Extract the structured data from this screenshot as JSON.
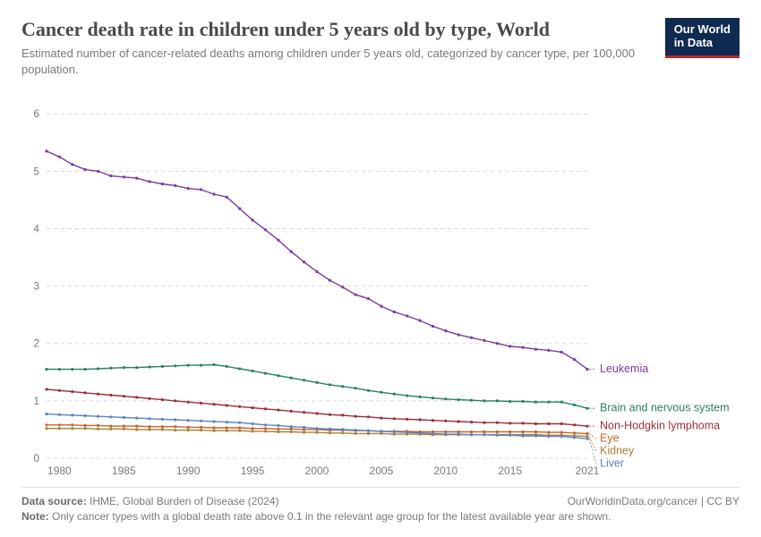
{
  "header": {
    "title": "Cancer death rate in children under 5 years old by type, World",
    "subtitle": "Estimated number of cancer-related deaths among children under 5 years old, categorized by cancer type, per 100,000 population.",
    "logo_line1": "Our World",
    "logo_line2": "in Data"
  },
  "chart": {
    "type": "line",
    "background_color": "#ffffff",
    "grid_color": "#d8d8d8",
    "axis_text_color": "#7a7a7a",
    "axis_fontsize": 12,
    "label_fontsize": 12.5,
    "line_width": 1.4,
    "marker_radius": 1.6,
    "x": {
      "min": 1979,
      "max": 2021,
      "ticks": [
        1980,
        1985,
        1990,
        1995,
        2000,
        2005,
        2010,
        2015,
        2021
      ]
    },
    "y": {
      "min": 0,
      "max": 6.3,
      "ticks": [
        0,
        1,
        2,
        3,
        4,
        5,
        6
      ]
    },
    "years": [
      1979,
      1980,
      1981,
      1982,
      1983,
      1984,
      1985,
      1986,
      1987,
      1988,
      1989,
      1990,
      1991,
      1992,
      1993,
      1994,
      1995,
      1996,
      1997,
      1998,
      1999,
      2000,
      2001,
      2002,
      2003,
      2004,
      2005,
      2006,
      2007,
      2008,
      2009,
      2010,
      2011,
      2012,
      2013,
      2014,
      2015,
      2016,
      2017,
      2018,
      2019,
      2020,
      2021
    ],
    "series": [
      {
        "name": "Leukemia",
        "color": "#7b3b9e",
        "label_y_offset": 0,
        "values": [
          5.35,
          5.25,
          5.12,
          5.03,
          5.0,
          4.92,
          4.9,
          4.88,
          4.82,
          4.78,
          4.75,
          4.7,
          4.68,
          4.6,
          4.55,
          4.35,
          4.15,
          3.98,
          3.8,
          3.6,
          3.42,
          3.25,
          3.1,
          2.98,
          2.85,
          2.78,
          2.65,
          2.55,
          2.48,
          2.4,
          2.3,
          2.22,
          2.15,
          2.1,
          2.05,
          2.0,
          1.95,
          1.93,
          1.9,
          1.88,
          1.85,
          1.72,
          1.55
        ]
      },
      {
        "name": "Brain and nervous system",
        "color": "#2a8060",
        "label_y_offset": 0,
        "values": [
          1.55,
          1.55,
          1.55,
          1.55,
          1.56,
          1.57,
          1.58,
          1.58,
          1.59,
          1.6,
          1.61,
          1.62,
          1.62,
          1.63,
          1.6,
          1.56,
          1.52,
          1.48,
          1.44,
          1.4,
          1.36,
          1.32,
          1.28,
          1.25,
          1.22,
          1.18,
          1.15,
          1.12,
          1.09,
          1.07,
          1.05,
          1.03,
          1.02,
          1.01,
          1.0,
          1.0,
          0.99,
          0.99,
          0.98,
          0.98,
          0.98,
          0.93,
          0.87
        ]
      },
      {
        "name": "Non-Hodgkin lymphoma",
        "color": "#9c2e3a",
        "label_y_offset": 0,
        "values": [
          1.2,
          1.18,
          1.16,
          1.14,
          1.12,
          1.1,
          1.08,
          1.06,
          1.04,
          1.02,
          1.0,
          0.98,
          0.96,
          0.94,
          0.92,
          0.9,
          0.88,
          0.86,
          0.84,
          0.82,
          0.8,
          0.78,
          0.76,
          0.75,
          0.73,
          0.72,
          0.7,
          0.69,
          0.68,
          0.67,
          0.66,
          0.65,
          0.64,
          0.63,
          0.62,
          0.62,
          0.61,
          0.61,
          0.6,
          0.6,
          0.6,
          0.58,
          0.56
        ]
      },
      {
        "name": "Eye",
        "color": "#c7632b",
        "label_y_offset": 0,
        "values": [
          0.58,
          0.58,
          0.58,
          0.57,
          0.57,
          0.56,
          0.56,
          0.56,
          0.55,
          0.55,
          0.55,
          0.54,
          0.54,
          0.53,
          0.53,
          0.53,
          0.52,
          0.52,
          0.51,
          0.51,
          0.5,
          0.5,
          0.49,
          0.49,
          0.48,
          0.48,
          0.47,
          0.47,
          0.47,
          0.46,
          0.46,
          0.46,
          0.46,
          0.46,
          0.46,
          0.46,
          0.46,
          0.46,
          0.46,
          0.45,
          0.45,
          0.44,
          0.43
        ]
      },
      {
        "name": "Kidney",
        "color": "#a88237",
        "label_y_offset": 0,
        "values": [
          0.52,
          0.52,
          0.52,
          0.52,
          0.51,
          0.51,
          0.51,
          0.5,
          0.5,
          0.5,
          0.49,
          0.49,
          0.49,
          0.48,
          0.48,
          0.48,
          0.47,
          0.47,
          0.46,
          0.46,
          0.45,
          0.45,
          0.44,
          0.44,
          0.43,
          0.43,
          0.43,
          0.42,
          0.42,
          0.42,
          0.41,
          0.41,
          0.41,
          0.41,
          0.41,
          0.41,
          0.41,
          0.41,
          0.41,
          0.4,
          0.4,
          0.39,
          0.38
        ]
      },
      {
        "name": "Liver",
        "color": "#5d83c1",
        "label_y_offset": 0,
        "values": [
          0.77,
          0.76,
          0.75,
          0.74,
          0.73,
          0.72,
          0.71,
          0.7,
          0.69,
          0.68,
          0.67,
          0.66,
          0.65,
          0.64,
          0.63,
          0.62,
          0.6,
          0.58,
          0.57,
          0.55,
          0.54,
          0.52,
          0.51,
          0.5,
          0.49,
          0.48,
          0.47,
          0.46,
          0.45,
          0.44,
          0.43,
          0.42,
          0.42,
          0.41,
          0.41,
          0.4,
          0.4,
          0.39,
          0.39,
          0.38,
          0.38,
          0.36,
          0.34
        ]
      }
    ]
  },
  "footer": {
    "source_label": "Data source:",
    "source_value": "IHME, Global Burden of Disease (2024)",
    "attribution": "OurWorldinData.org/cancer | CC BY",
    "note_label": "Note:",
    "note_value": "Only cancer types with a global death rate above 0.1 in the relevant age group for the latest available year are shown."
  }
}
